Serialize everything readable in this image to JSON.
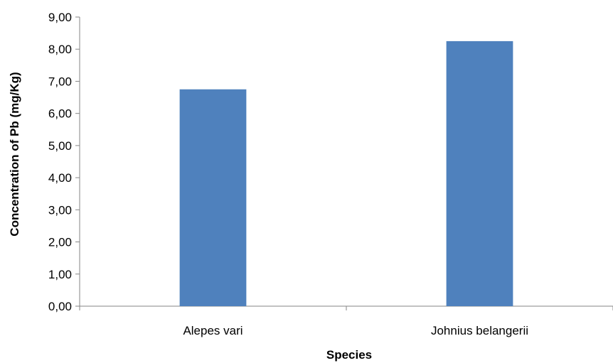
{
  "chart_data": {
    "type": "bar",
    "title": "",
    "xlabel": "Species",
    "ylabel": "Concentration of Pb (mg/Kg)",
    "categories": [
      "Alepes vari",
      "Johnius belangerii"
    ],
    "values": [
      6.75,
      8.25
    ],
    "ylim": [
      0,
      9
    ],
    "ytick_labels": [
      "0,00",
      "1,00",
      "2,00",
      "3,00",
      "4,00",
      "5,00",
      "6,00",
      "7,00",
      "8,00",
      "9,00"
    ],
    "grid": false,
    "legend": "none",
    "bar_color": "#4F81BD"
  }
}
